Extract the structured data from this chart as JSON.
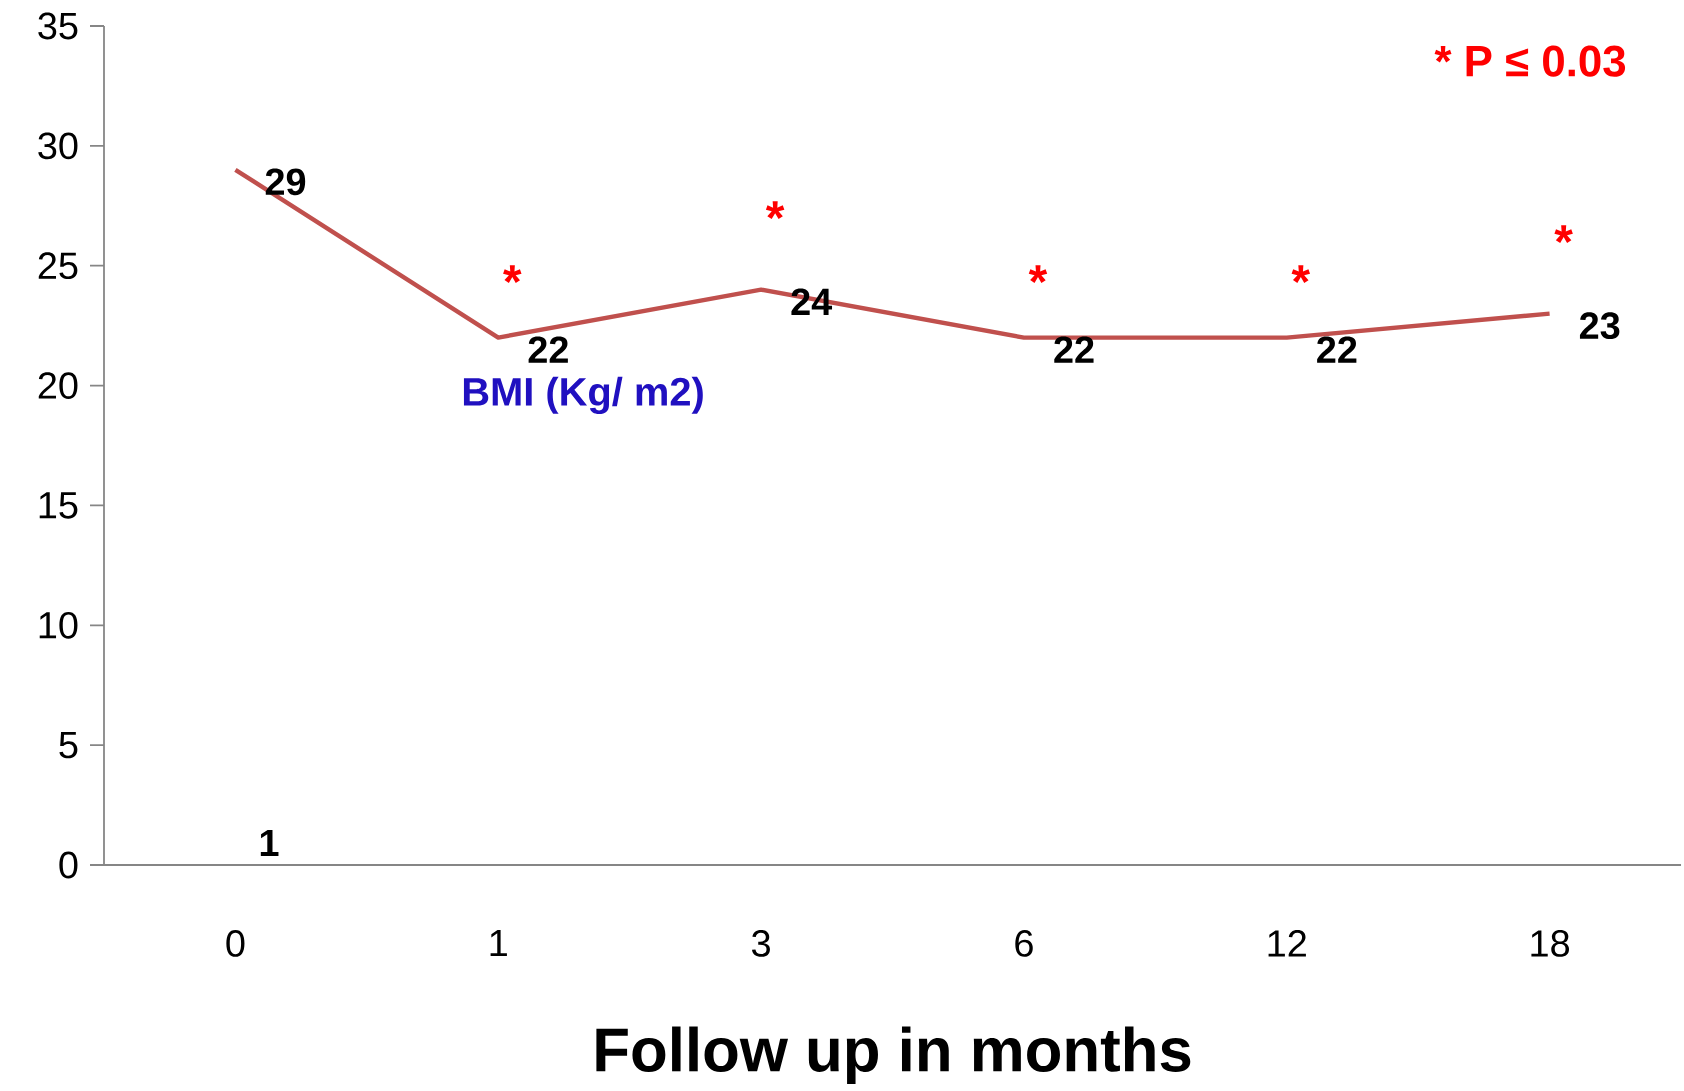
{
  "chart_data": {
    "type": "line",
    "xlabel": "Follow up in months",
    "categories": [
      "0",
      "1",
      "3",
      "6",
      "12",
      "18"
    ],
    "series": [
      {
        "name": "BMI (Kg/ m2)",
        "color": "#c0504d",
        "values": [
          29,
          22,
          24,
          22,
          22,
          23
        ]
      }
    ],
    "ylim": [
      0,
      35
    ],
    "yticks": [
      0,
      5,
      10,
      15,
      20,
      25,
      30,
      35
    ],
    "data_labels": true,
    "grid": false,
    "marker": "none",
    "annotations": [
      "* P ≤ 0.03",
      "*",
      "*",
      "*",
      "*",
      "*",
      "1"
    ]
  }
}
